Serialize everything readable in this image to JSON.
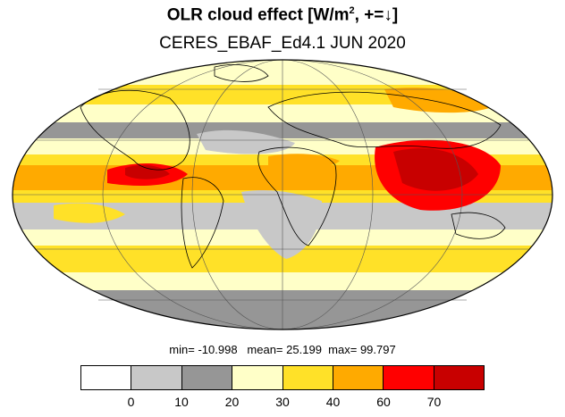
{
  "title": "OLR cloud effect [W/m",
  "title_sup": "2",
  "title_tail": ", +=↓]",
  "subtitle": "CERES_EBAF_Ed4.1 JUN 2020",
  "stats": {
    "min_label": "min=",
    "min": "-10.998",
    "mean_label": "mean=",
    "mean": "25.199",
    "max_label": "max=",
    "max": "99.797"
  },
  "colorbar": {
    "colors": [
      "#ffffff",
      "#c8c8c8",
      "#969696",
      "#ffffc8",
      "#ffe128",
      "#ffaa00",
      "#ff0000",
      "#c80000"
    ],
    "ticks": [
      "0",
      "10",
      "20",
      "30",
      "40",
      "60",
      "70"
    ]
  },
  "map": {
    "projection": "mollweide",
    "ocean_default": "#c8c8c8"
  }
}
